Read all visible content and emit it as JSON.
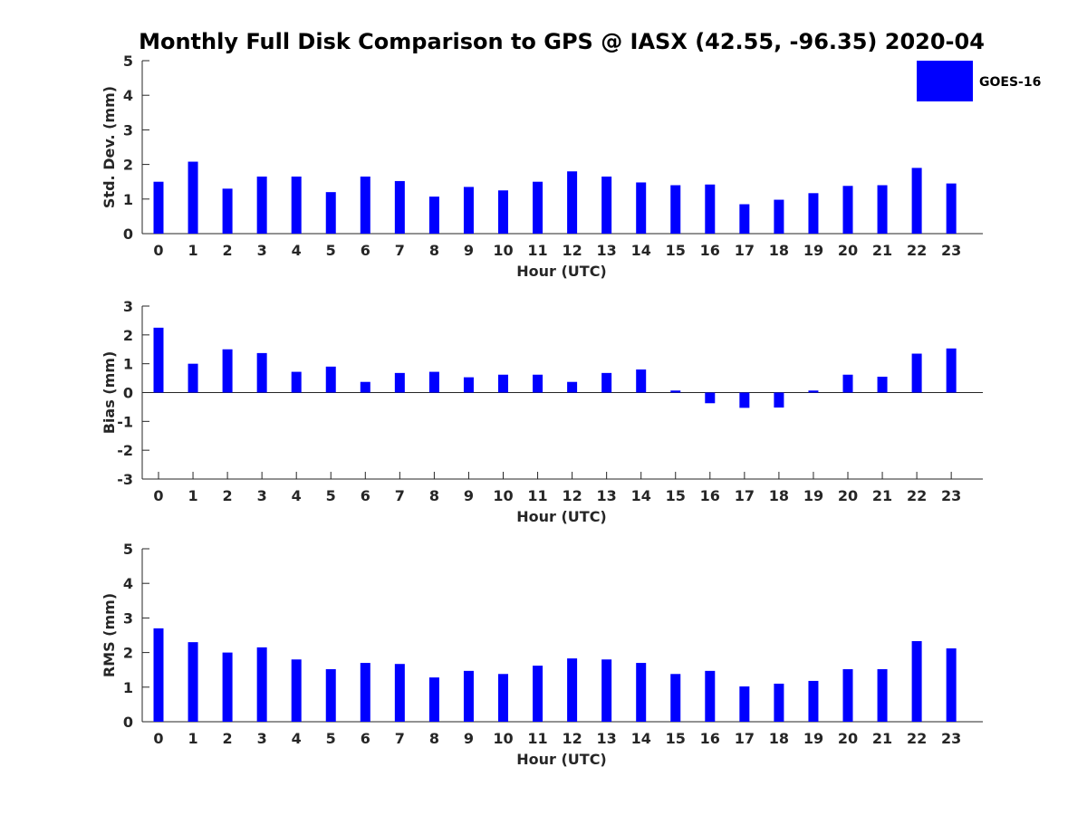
{
  "title": "Monthly Full Disk Comparison to GPS @ IASX (42.55, -96.35) 2020-04",
  "legend": {
    "label": "GOES-16",
    "color": "#0000ff"
  },
  "colors": {
    "bar": "#0000ff",
    "axis": "#262626"
  },
  "chart_data": [
    {
      "type": "bar",
      "name": "std-dev",
      "title": "",
      "xlabel": "Hour (UTC)",
      "ylabel": "Std. Dev. (mm)",
      "categories": [
        "0",
        "1",
        "2",
        "3",
        "4",
        "5",
        "6",
        "7",
        "8",
        "9",
        "10",
        "11",
        "12",
        "13",
        "14",
        "15",
        "16",
        "17",
        "18",
        "19",
        "20",
        "21",
        "22",
        "23"
      ],
      "yticks": [
        0,
        1,
        2,
        3,
        4,
        5
      ],
      "ylim": [
        0,
        5
      ],
      "series": [
        {
          "name": "GOES-16",
          "values": [
            1.5,
            2.08,
            1.3,
            1.65,
            1.65,
            1.2,
            1.65,
            1.52,
            1.07,
            1.35,
            1.25,
            1.5,
            1.8,
            1.65,
            1.48,
            1.4,
            1.42,
            0.85,
            0.98,
            1.17,
            1.38,
            1.4,
            1.9,
            1.45
          ]
        }
      ]
    },
    {
      "type": "bar",
      "name": "bias",
      "title": "",
      "xlabel": "Hour (UTC)",
      "ylabel": "Bias (mm)",
      "categories": [
        "0",
        "1",
        "2",
        "3",
        "4",
        "5",
        "6",
        "7",
        "8",
        "9",
        "10",
        "11",
        "12",
        "13",
        "14",
        "15",
        "16",
        "17",
        "18",
        "19",
        "20",
        "21",
        "22",
        "23"
      ],
      "yticks": [
        -3,
        -2,
        -1,
        0,
        1,
        2,
        3
      ],
      "ylim": [
        -3,
        3
      ],
      "series": [
        {
          "name": "GOES-16",
          "values": [
            2.25,
            1.0,
            1.5,
            1.37,
            0.72,
            0.9,
            0.37,
            0.68,
            0.72,
            0.53,
            0.62,
            0.62,
            0.37,
            0.68,
            0.8,
            0.07,
            -0.37,
            -0.53,
            -0.52,
            0.07,
            0.62,
            0.55,
            1.35,
            1.53
          ]
        }
      ]
    },
    {
      "type": "bar",
      "name": "rms",
      "title": "",
      "xlabel": "Hour (UTC)",
      "ylabel": "RMS (mm)",
      "categories": [
        "0",
        "1",
        "2",
        "3",
        "4",
        "5",
        "6",
        "7",
        "8",
        "9",
        "10",
        "11",
        "12",
        "13",
        "14",
        "15",
        "16",
        "17",
        "18",
        "19",
        "20",
        "21",
        "22",
        "23"
      ],
      "yticks": [
        0,
        1,
        2,
        3,
        4,
        5
      ],
      "ylim": [
        0,
        5
      ],
      "series": [
        {
          "name": "GOES-16",
          "values": [
            2.7,
            2.3,
            2.0,
            2.15,
            1.8,
            1.52,
            1.7,
            1.67,
            1.28,
            1.47,
            1.38,
            1.62,
            1.83,
            1.8,
            1.7,
            1.38,
            1.47,
            1.02,
            1.1,
            1.18,
            1.52,
            1.52,
            2.33,
            2.12
          ]
        }
      ]
    }
  ]
}
